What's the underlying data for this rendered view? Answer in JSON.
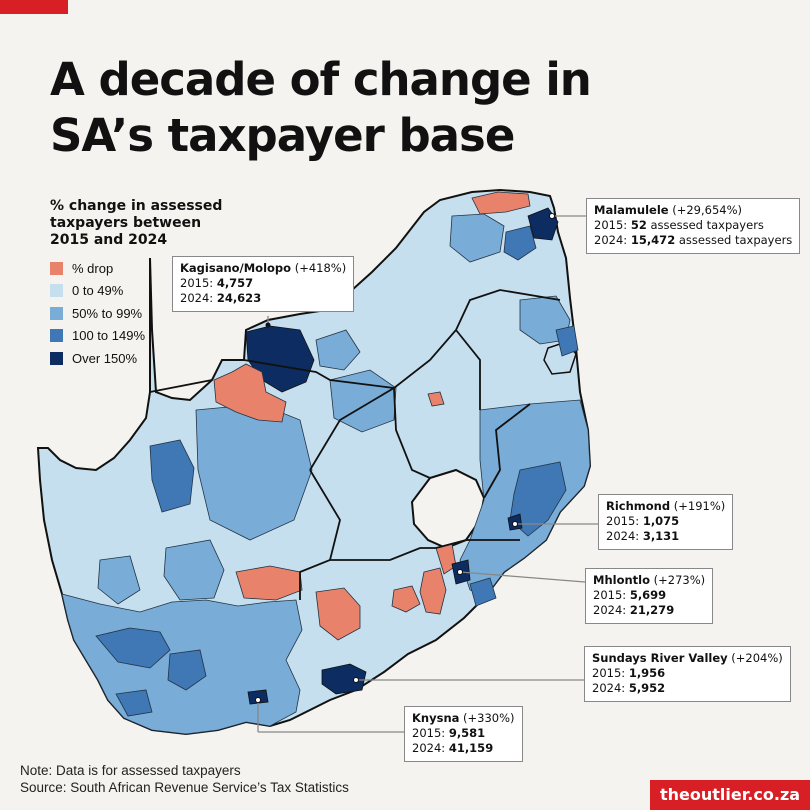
{
  "title_line1": "A decade of change in",
  "title_line2": "SA’s taxpayer base",
  "legend": {
    "title": "% change in assessed taxpayers between 2015 and 2024",
    "items": [
      {
        "label": "% drop",
        "color": "#e8826a"
      },
      {
        "label": "0 to 49%",
        "color": "#c6dfee"
      },
      {
        "label": "50% to 99%",
        "color": "#79acd6"
      },
      {
        "label": "100 to 149%",
        "color": "#3f78b5"
      },
      {
        "label": "Over 150%",
        "color": "#0d2c61"
      }
    ]
  },
  "callouts": [
    {
      "name": "Malamulele",
      "change": "(+29,654%)",
      "y2015_label": "2015:",
      "y2015": "52",
      "y2015_suffix": "assessed taxpayers",
      "y2024_label": "2024:",
      "y2024": "15,472",
      "y2024_suffix": "assessed taxpayers"
    },
    {
      "name": "Kagisano/Molopo",
      "change": "(+418%)",
      "y2015_label": "2015:",
      "y2015": "4,757",
      "y2024_label": "2024:",
      "y2024": "24,623"
    },
    {
      "name": "Richmond",
      "change": "(+191%)",
      "y2015_label": "2015:",
      "y2015": "1,075",
      "y2024_label": "2024:",
      "y2024": "3,131"
    },
    {
      "name": "Mhlontlo",
      "change": "(+273%)",
      "y2015_label": "2015:",
      "y2015": "5,699",
      "y2024_label": "2024:",
      "y2024": "21,279"
    },
    {
      "name": "Sundays River Valley",
      "change": "(+204%)",
      "y2015_label": "2015:",
      "y2015": "1,956",
      "y2024_label": "2024:",
      "y2024": "5,952"
    },
    {
      "name": "Knysna",
      "change": "(+330%)",
      "y2015_label": "2015:",
      "y2015": "9,581",
      "y2024_label": "2024:",
      "y2024": "41,159"
    }
  ],
  "note": "Note: Data is for assessed taxpayers",
  "source": "Source: South African Revenue Service’s Tax Statistics",
  "brand": "theoutlier.co.za"
}
